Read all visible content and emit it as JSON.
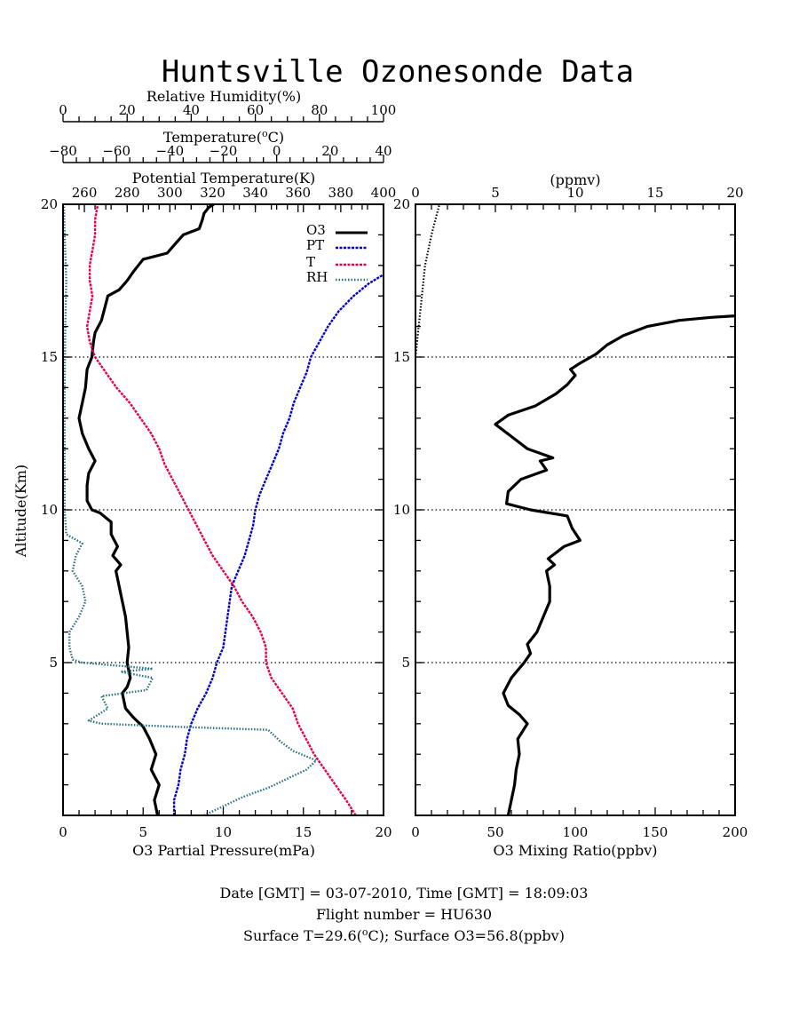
{
  "chart_data": [
    {
      "type": "line",
      "title": "Huntsville Ozonesonde Data",
      "ylabel": "Altitude(Km)",
      "ylim": [
        0,
        20
      ],
      "y_ticks": [
        "5",
        "10",
        "15",
        "20"
      ],
      "grid_lines_at": [
        5,
        10,
        15
      ],
      "legend_position": "top-right",
      "axes": {
        "o3_pressure": {
          "label": "O3 Partial Pressure(mPa)",
          "range": [
            0,
            20
          ],
          "ticks": [
            "0",
            "5",
            "10",
            "15",
            "20"
          ]
        },
        "rh": {
          "label": "Relative Humidity(%)",
          "range": [
            0,
            100
          ],
          "ticks": [
            "0",
            "20",
            "40",
            "60",
            "80",
            "100"
          ]
        },
        "temp": {
          "label_prefix": "Temperature(",
          "label_sup": "o",
          "label_suffix": "C)",
          "range": [
            -80,
            40
          ],
          "ticks": [
            "−80",
            "−60",
            "−40",
            "−20",
            "0",
            "20",
            "40"
          ]
        },
        "pt": {
          "label": "Potential Temperature(K)",
          "range": [
            250,
            400
          ],
          "ticks": [
            "260",
            "280",
            "300",
            "320",
            "340",
            "360",
            "380",
            "400"
          ]
        }
      },
      "series": [
        {
          "name": "O3",
          "color": "#000000",
          "axis": "o3_pressure",
          "points": [
            [
              5.9,
              0
            ],
            [
              5.7,
              0.5
            ],
            [
              6.0,
              1.0
            ],
            [
              5.5,
              1.5
            ],
            [
              5.8,
              2.0
            ],
            [
              5.4,
              2.5
            ],
            [
              5.0,
              2.9
            ],
            [
              4.8,
              3.0
            ],
            [
              4.4,
              3.2
            ],
            [
              3.9,
              3.5
            ],
            [
              3.7,
              4.0
            ],
            [
              4.0,
              4.2
            ],
            [
              4.2,
              4.5
            ],
            [
              4.0,
              5.0
            ],
            [
              4.1,
              5.5
            ],
            [
              4.0,
              6.0
            ],
            [
              3.9,
              6.5
            ],
            [
              3.7,
              7.0
            ],
            [
              3.5,
              7.5
            ],
            [
              3.3,
              8.0
            ],
            [
              3.6,
              8.2
            ],
            [
              3.1,
              8.5
            ],
            [
              3.4,
              8.8
            ],
            [
              3.0,
              9.2
            ],
            [
              3.0,
              9.6
            ],
            [
              2.3,
              9.9
            ],
            [
              1.8,
              10.0
            ],
            [
              1.5,
              10.3
            ],
            [
              1.5,
              10.8
            ],
            [
              1.6,
              11.2
            ],
            [
              2.0,
              11.6
            ],
            [
              1.6,
              12.0
            ],
            [
              1.2,
              12.5
            ],
            [
              1.0,
              13.0
            ],
            [
              1.2,
              13.5
            ],
            [
              1.4,
              14.0
            ],
            [
              1.5,
              14.6
            ],
            [
              1.8,
              15.0
            ],
            [
              1.9,
              15.5
            ],
            [
              2.0,
              15.8
            ],
            [
              2.4,
              16.2
            ],
            [
              2.6,
              16.6
            ],
            [
              2.8,
              17.0
            ],
            [
              3.5,
              17.2
            ],
            [
              4.0,
              17.5
            ],
            [
              4.4,
              17.8
            ],
            [
              4.7,
              18.0
            ],
            [
              5.0,
              18.2
            ],
            [
              6.5,
              18.4
            ],
            [
              7.0,
              18.7
            ],
            [
              7.5,
              19.0
            ],
            [
              8.5,
              19.2
            ],
            [
              8.7,
              19.5
            ],
            [
              8.8,
              19.7
            ],
            [
              9.1,
              19.9
            ],
            [
              9.4,
              20.0
            ]
          ]
        },
        {
          "name": "PT",
          "color": "#0000cc",
          "axis": "pt",
          "points": [
            [
              302,
              0
            ],
            [
              302,
              0.5
            ],
            [
              304,
              1.0
            ],
            [
              305,
              1.5
            ],
            [
              307,
              2.0
            ],
            [
              308,
              2.5
            ],
            [
              310,
              3.0
            ],
            [
              313,
              3.5
            ],
            [
              317,
              4.0
            ],
            [
              320,
              4.5
            ],
            [
              322,
              5.0
            ],
            [
              325,
              5.5
            ],
            [
              326,
              6.0
            ],
            [
              327,
              6.5
            ],
            [
              328,
              7.0
            ],
            [
              329,
              7.5
            ],
            [
              332,
              8.0
            ],
            [
              335,
              8.5
            ],
            [
              337,
              9.0
            ],
            [
              339,
              9.5
            ],
            [
              340,
              10.0
            ],
            [
              342,
              10.5
            ],
            [
              345,
              11.0
            ],
            [
              348,
              11.5
            ],
            [
              351,
              12.0
            ],
            [
              353,
              12.5
            ],
            [
              356,
              13.0
            ],
            [
              358,
              13.5
            ],
            [
              361,
              14.0
            ],
            [
              364,
              14.5
            ],
            [
              366,
              15.0
            ],
            [
              370,
              15.5
            ],
            [
              374,
              16.0
            ],
            [
              379,
              16.5
            ],
            [
              386,
              17.0
            ],
            [
              393,
              17.4
            ],
            [
              400,
              17.7
            ]
          ]
        },
        {
          "name": "T",
          "color": "#e8004a",
          "axis": "temp",
          "points": [
            [
              29.6,
              0
            ],
            [
              26,
              0.5
            ],
            [
              22,
              1.0
            ],
            [
              18,
              1.5
            ],
            [
              14,
              2.0
            ],
            [
              11,
              2.5
            ],
            [
              8,
              3.0
            ],
            [
              6,
              3.5
            ],
            [
              2,
              4.0
            ],
            [
              -2,
              4.5
            ],
            [
              -4,
              5.0
            ],
            [
              -4,
              5.5
            ],
            [
              -6,
              6.0
            ],
            [
              -9,
              6.5
            ],
            [
              -13,
              7.0
            ],
            [
              -16,
              7.5
            ],
            [
              -20,
              8.0
            ],
            [
              -24,
              8.5
            ],
            [
              -27,
              9.0
            ],
            [
              -30,
              9.5
            ],
            [
              -33,
              10.0
            ],
            [
              -36,
              10.5
            ],
            [
              -39,
              11.0
            ],
            [
              -42,
              11.5
            ],
            [
              -44,
              12.0
            ],
            [
              -47,
              12.5
            ],
            [
              -51,
              13.0
            ],
            [
              -55,
              13.5
            ],
            [
              -60,
              14.0
            ],
            [
              -64,
              14.5
            ],
            [
              -68,
              15.0
            ],
            [
              -70,
              15.5
            ],
            [
              -71,
              16.0
            ],
            [
              -70,
              16.5
            ],
            [
              -69,
              17.0
            ],
            [
              -70,
              17.5
            ],
            [
              -70,
              18.0
            ],
            [
              -69,
              18.5
            ],
            [
              -68,
              19.0
            ],
            [
              -68,
              19.5
            ],
            [
              -67,
              20.0
            ]
          ]
        },
        {
          "name": "RH",
          "color": "#2a7080",
          "axis": "rh",
          "points": [
            [
              44,
              0
            ],
            [
              50,
              0.3
            ],
            [
              56,
              0.6
            ],
            [
              64,
              0.9
            ],
            [
              70,
              1.2
            ],
            [
              76,
              1.5
            ],
            [
              79,
              1.8
            ],
            [
              72,
              2.1
            ],
            [
              68,
              2.4
            ],
            [
              64,
              2.8
            ],
            [
              35,
              2.9
            ],
            [
              12,
              3.0
            ],
            [
              8,
              3.1
            ],
            [
              14,
              3.5
            ],
            [
              12,
              3.9
            ],
            [
              26,
              4.1
            ],
            [
              28,
              4.5
            ],
            [
              18,
              4.7
            ],
            [
              28,
              4.8
            ],
            [
              6,
              5.0
            ],
            [
              3,
              5.1
            ],
            [
              2,
              5.5
            ],
            [
              2,
              6.0
            ],
            [
              5,
              6.5
            ],
            [
              7,
              7.0
            ],
            [
              6,
              7.5
            ],
            [
              3,
              8.0
            ],
            [
              4,
              8.5
            ],
            [
              6,
              8.9
            ],
            [
              1,
              9.2
            ],
            [
              0.5,
              10
            ],
            [
              0.5,
              12
            ],
            [
              0.5,
              14
            ],
            [
              0.7,
              16
            ],
            [
              1,
              17.5
            ],
            [
              0.5,
              19
            ],
            [
              0.3,
              20
            ]
          ]
        }
      ]
    },
    {
      "type": "line",
      "xlabel": "O3 Mixing Ratio(ppbv)",
      "xlim": [
        0,
        200
      ],
      "x_ticks": [
        "0",
        "50",
        "100",
        "150",
        "200"
      ],
      "top_axis": {
        "label": "(ppmv)",
        "range": [
          0,
          20
        ],
        "ticks": [
          "0",
          "5",
          "10",
          "15",
          "20"
        ]
      },
      "ylim": [
        0,
        20
      ],
      "y_ticks": [
        "5",
        "10",
        "15",
        "20"
      ],
      "grid_lines_at": [
        5,
        10,
        15
      ],
      "series": [
        {
          "name": "",
          "color": "#000000",
          "axis": "ppbv",
          "points": [
            [
              58,
              0
            ],
            [
              60,
              0.5
            ],
            [
              62,
              1.0
            ],
            [
              63,
              1.5
            ],
            [
              65,
              2.0
            ],
            [
              64,
              2.5
            ],
            [
              70,
              3.0
            ],
            [
              65,
              3.3
            ],
            [
              58,
              3.6
            ],
            [
              55,
              4.0
            ],
            [
              60,
              4.5
            ],
            [
              68,
              5.0
            ],
            [
              72,
              5.3
            ],
            [
              70,
              5.6
            ],
            [
              76,
              6.0
            ],
            [
              80,
              6.5
            ],
            [
              84,
              7.0
            ],
            [
              84,
              7.5
            ],
            [
              82,
              8.0
            ],
            [
              87,
              8.2
            ],
            [
              83,
              8.4
            ],
            [
              88,
              8.6
            ],
            [
              93,
              8.8
            ],
            [
              103,
              9.0
            ],
            [
              98,
              9.4
            ],
            [
              95,
              9.8
            ],
            [
              72,
              10.0
            ],
            [
              57,
              10.2
            ],
            [
              58,
              10.6
            ],
            [
              66,
              11.0
            ],
            [
              82,
              11.3
            ],
            [
              78,
              11.6
            ],
            [
              86,
              11.7
            ],
            [
              70,
              12.0
            ],
            [
              60,
              12.4
            ],
            [
              50,
              12.8
            ],
            [
              58,
              13.1
            ],
            [
              75,
              13.4
            ],
            [
              88,
              13.8
            ],
            [
              95,
              14.1
            ],
            [
              100,
              14.4
            ],
            [
              97,
              14.6
            ],
            [
              103,
              14.8
            ],
            [
              113,
              15.1
            ],
            [
              120,
              15.4
            ],
            [
              130,
              15.7
            ],
            [
              145,
              16.0
            ],
            [
              165,
              16.2
            ],
            [
              185,
              16.3
            ],
            [
              200,
              16.35
            ]
          ]
        },
        {
          "name": "",
          "color": "#000000",
          "axis": "ppmv",
          "points": [
            [
              0,
              15
            ],
            [
              0.2,
              16
            ],
            [
              0.4,
              17
            ],
            [
              0.6,
              18
            ],
            [
              1.0,
              19
            ],
            [
              1.5,
              20
            ]
          ]
        }
      ]
    }
  ],
  "footer": {
    "line1": "Date [GMT] = 03-07-2010,  Time [GMT] = 18:09:03",
    "line2": "Flight number = HU630",
    "line3_prefix": "Surface T=29.6(",
    "line3_sup": "o",
    "line3_suffix": "C); Surface O3=56.8(ppbv)"
  }
}
